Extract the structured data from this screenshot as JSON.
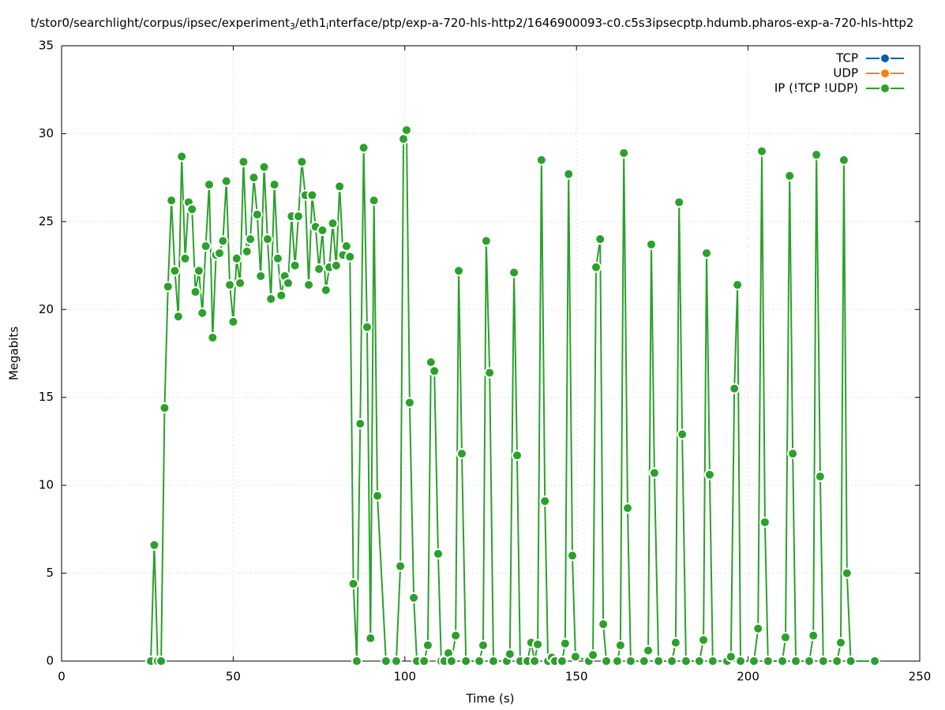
{
  "chart_data": {
    "type": "line",
    "title": [
      "t/stor0/searchlight/corpus/ipsec/experiment",
      "3",
      "/eth1",
      "i",
      "nterface/ptp/exp-a-720-hls-http2/1646900093-c0.c5s3ipsecptp.hdumb.pharos-exp-a-720-hls-http2"
    ],
    "xlabel": "Time (s)",
    "ylabel": "Megabits",
    "xlim": [
      0,
      250
    ],
    "xticks": [
      0,
      50,
      100,
      150,
      200,
      250
    ],
    "ylim": [
      0,
      35
    ],
    "yticks": [
      0,
      5,
      10,
      15,
      20,
      25,
      30,
      35
    ],
    "grid": true,
    "legend": "upper right",
    "series": [
      {
        "name": "TCP",
        "color": "#0060ad",
        "x": [],
        "values": []
      },
      {
        "name": "UDP",
        "color": "#ff7f0e",
        "x": [],
        "values": []
      },
      {
        "name": "IP (!TCP  !UDP)",
        "color": "#2ca02c",
        "x": [
          26,
          27,
          28,
          29,
          30,
          31,
          32,
          33,
          34,
          35,
          36,
          37,
          38,
          39,
          40,
          41,
          42,
          43,
          44,
          45,
          46,
          47,
          48,
          49,
          50,
          51,
          52,
          53,
          54,
          55,
          56,
          57,
          58,
          59,
          60,
          61,
          62,
          63,
          64,
          65,
          66,
          67,
          68,
          69,
          70,
          71,
          72,
          73,
          74,
          75,
          76,
          77,
          78,
          79,
          80,
          81,
          82,
          83,
          84,
          85,
          86,
          87,
          88,
          89,
          90,
          91,
          92,
          94.5,
          97.5,
          98.7,
          99.6,
          100.5,
          101.4,
          102.6,
          103.5,
          105.6,
          106.7,
          107.6,
          108.6,
          109.7,
          110.6,
          111.5,
          112.7,
          113.6,
          114.8,
          115.7,
          116.6,
          117.8,
          121.7,
          122.8,
          123.7,
          124.7,
          125.8,
          129.7,
          130.6,
          131.8,
          132.7,
          133.6,
          135.7,
          136.8,
          137.8,
          138.7,
          139.8,
          140.8,
          141.7,
          142.8,
          143.7,
          145.8,
          146.7,
          147.7,
          148.8,
          149.7,
          153.6,
          154.8,
          155.7,
          156.9,
          157.8,
          158.7,
          161.9,
          162.8,
          163.8,
          164.9,
          165.8,
          169.7,
          170.9,
          171.8,
          172.7,
          173.9,
          177.8,
          178.9,
          179.9,
          180.8,
          181.9,
          185.8,
          187.0,
          187.9,
          188.8,
          189.7,
          193.9,
          195.0,
          196.0,
          196.9,
          197.8,
          201.7,
          202.9,
          204.0,
          204.9,
          205.8,
          210.0,
          210.9,
          212.1,
          213.0,
          213.9,
          217.8,
          219.0,
          219.9,
          221.0,
          221.9,
          225.9,
          227.0,
          227.9,
          228.8,
          229.9,
          236.9
        ],
        "values": [
          0,
          6.6,
          0,
          0,
          14.4,
          21.3,
          26.2,
          22.2,
          19.6,
          28.7,
          22.9,
          26.1,
          25.7,
          21.0,
          22.2,
          19.8,
          23.6,
          27.1,
          18.4,
          23.1,
          23.2,
          23.9,
          27.3,
          21.4,
          19.3,
          22.9,
          21.5,
          28.4,
          23.3,
          24.0,
          27.5,
          25.4,
          21.9,
          28.1,
          24.0,
          20.6,
          27.1,
          22.9,
          20.8,
          21.9,
          21.5,
          25.3,
          22.5,
          25.3,
          28.4,
          26.5,
          21.4,
          26.5,
          24.7,
          22.3,
          24.5,
          21.1,
          22.4,
          24.9,
          22.5,
          27.0,
          23.1,
          23.6,
          23.0,
          4.4,
          0,
          13.5,
          29.2,
          19.0,
          1.3,
          26.2,
          9.4,
          0,
          0,
          5.4,
          29.7,
          30.2,
          14.7,
          3.6,
          0,
          0,
          0.9,
          17.0,
          16.5,
          6.1,
          0,
          0,
          0.45,
          0,
          1.45,
          22.2,
          11.8,
          0,
          0,
          0.9,
          23.9,
          16.4,
          0,
          0,
          0.4,
          22.1,
          11.7,
          0,
          0,
          1.05,
          0,
          0.95,
          28.5,
          9.1,
          0,
          0.2,
          0,
          0,
          1.0,
          27.7,
          6.0,
          0.25,
          0,
          0.35,
          22.4,
          24.0,
          2.1,
          0,
          0,
          0.9,
          28.9,
          8.7,
          0,
          0,
          0.6,
          23.7,
          10.7,
          0,
          0,
          1.05,
          26.1,
          12.9,
          0,
          0,
          1.2,
          23.2,
          10.6,
          0,
          0,
          0.25,
          15.5,
          21.4,
          0,
          0,
          1.85,
          29.0,
          7.9,
          0,
          0,
          1.35,
          27.6,
          11.8,
          0,
          0,
          1.45,
          28.8,
          10.5,
          0,
          0,
          1.05,
          28.5,
          5.0,
          0,
          0
        ]
      }
    ]
  }
}
